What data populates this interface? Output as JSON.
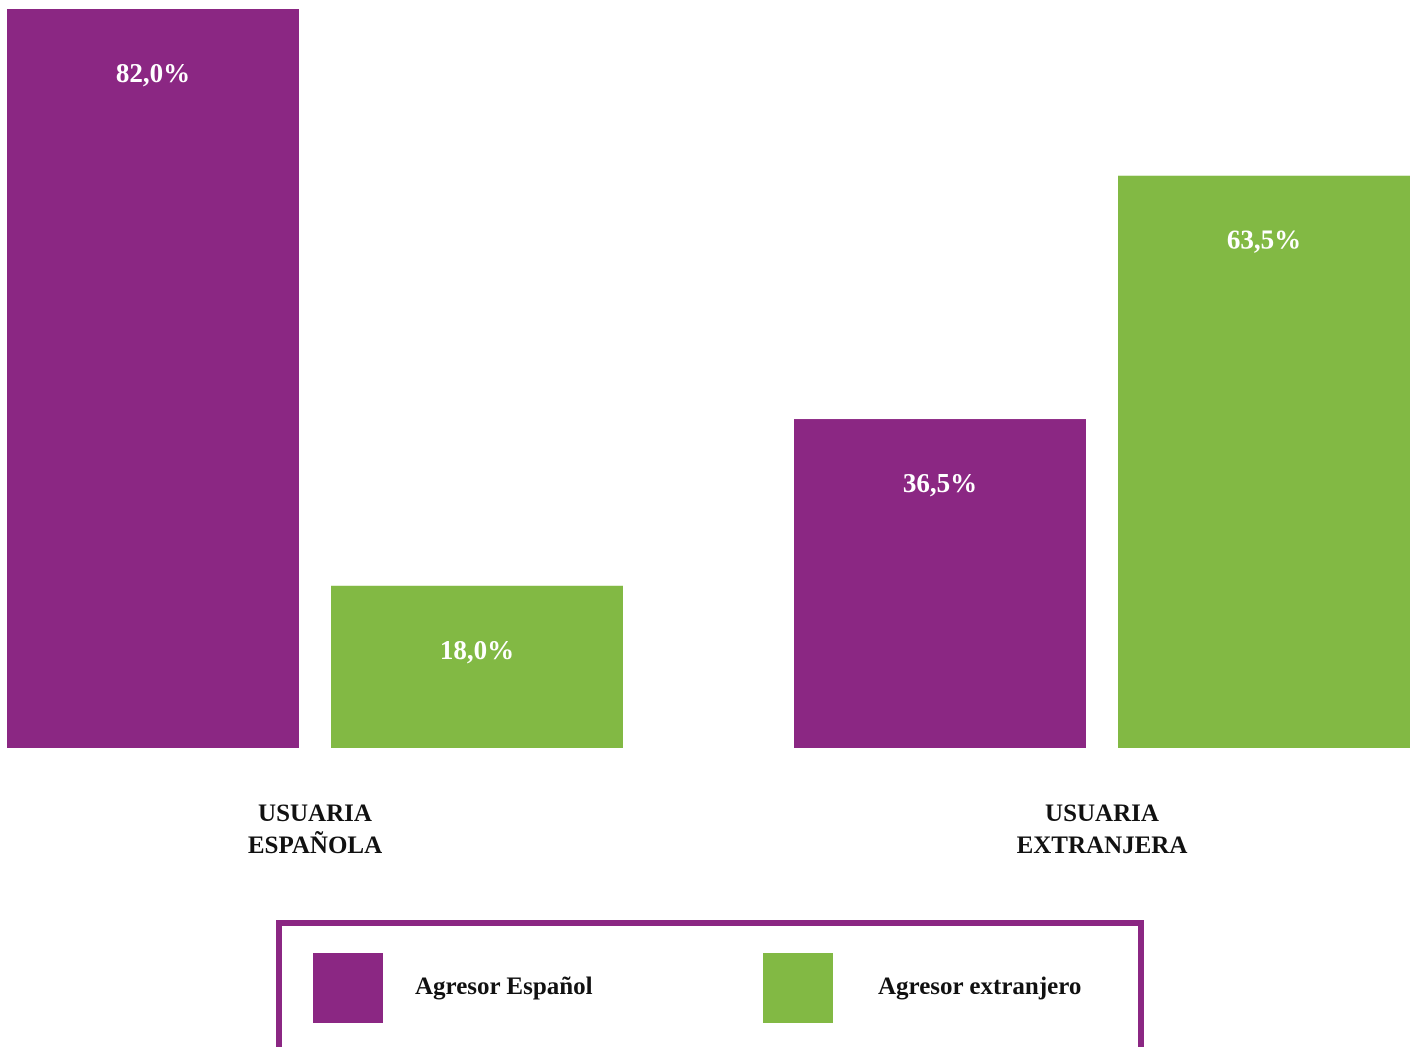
{
  "chart_data": {
    "type": "bar",
    "categories": [
      "USUARIA ESPAÑOLA",
      "USUARIA EXTRANJERA"
    ],
    "series": [
      {
        "name": "Agresor Español",
        "color": "#8b2783",
        "values": [
          82.0,
          36.5
        ],
        "value_labels": [
          "82,0%",
          "36,5%"
        ]
      },
      {
        "name": "Agresor extranjero",
        "color": "#82b944",
        "values": [
          18.0,
          63.5
        ],
        "value_labels": [
          "18,0%",
          "63,5%"
        ]
      }
    ]
  }
}
